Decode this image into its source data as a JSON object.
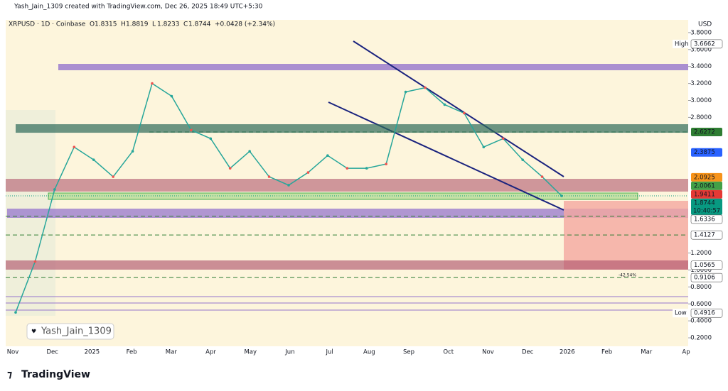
{
  "header": {
    "author_line": "Yash_Jain_1309 created with TradingView.com, Dec 26, 2025 18:49 UTC+5:30",
    "symbol": "XRPUSD · 1D · Coinbase",
    "quote": [
      {
        "key": "O",
        "value": "1.8315"
      },
      {
        "key": "H",
        "value": "1.8819"
      },
      {
        "key": "L",
        "value": "1.8233"
      },
      {
        "key": "C",
        "value": "1.8744"
      }
    ],
    "change": "+0.0428 (+2.34%)"
  },
  "price_axis": {
    "currency": "USD",
    "ylim": [
      0.1,
      3.95
    ],
    "ticks": [
      {
        "value": 3.8,
        "label": "3.8000"
      },
      {
        "value": 3.6,
        "label": "3.6000"
      },
      {
        "value": 3.4,
        "label": "3.4000"
      },
      {
        "value": 3.2,
        "label": "3.2000"
      },
      {
        "value": 3.0,
        "label": "3.0000"
      },
      {
        "value": 2.8,
        "label": "2.8000"
      },
      {
        "value": 1.2,
        "label": "1.2000"
      },
      {
        "value": 1.0,
        "label": "1.0000"
      },
      {
        "value": 0.8,
        "label": "0.8000"
      },
      {
        "value": 0.6,
        "label": "0.6000"
      },
      {
        "value": 0.4,
        "label": "0.4000"
      },
      {
        "value": 0.2,
        "label": "0.2000"
      }
    ]
  },
  "price_labels": [
    {
      "tag": "High",
      "value": 3.6662,
      "label": "3.6662",
      "color": "#ffffff"
    },
    {
      "value": 2.6272,
      "label": "2.6272",
      "color": "#2e7d32"
    },
    {
      "value": 2.3875,
      "label": "2.3875",
      "color": "#2962ff"
    },
    {
      "value": 2.0925,
      "label": "2.0925",
      "color": "#f7931a"
    },
    {
      "value": 2.0061,
      "label": "2.0061",
      "color": "#43a047"
    },
    {
      "value": 1.9411,
      "label": "1.9411",
      "color": "#e53935"
    },
    {
      "value": 1.8744,
      "label": "1.8744",
      "color": "#089981",
      "countdown": "10:40:57"
    },
    {
      "value": 1.6336,
      "label": "1.6336",
      "color": "#ffffff"
    },
    {
      "value": 1.4127,
      "label": "1.4127",
      "color": "#ffffff"
    },
    {
      "value": 1.0565,
      "label": "1.0565",
      "color": "#ffffff"
    },
    {
      "value": 0.9106,
      "label": "0.9106",
      "color": "#ffffff"
    },
    {
      "tag": "Low",
      "value": 0.4916,
      "label": "0.4916",
      "color": "#ffffff"
    }
  ],
  "target_annotation": "-42.54%",
  "price_series": {
    "values": [
      0.5,
      1.1,
      1.95,
      2.45,
      2.3,
      2.1,
      2.4,
      3.2,
      3.05,
      2.65,
      2.55,
      2.2,
      2.4,
      2.1,
      2.0,
      2.15,
      2.35,
      2.2,
      2.2,
      2.25,
      3.1,
      3.15,
      2.95,
      2.85,
      2.45,
      2.55,
      2.3,
      2.1,
      1.8744
    ]
  },
  "time_axis": {
    "labels": [
      "Nov",
      "Dec",
      "2025",
      "Feb",
      "Mar",
      "Apr",
      "May",
      "Jun",
      "Jul",
      "Aug",
      "Sep",
      "Oct",
      "Nov",
      "Dec",
      "2026",
      "Feb",
      "Mar",
      "Ap"
    ]
  },
  "watermark": "Yash_Jain_1309",
  "logo": "TradingView"
}
